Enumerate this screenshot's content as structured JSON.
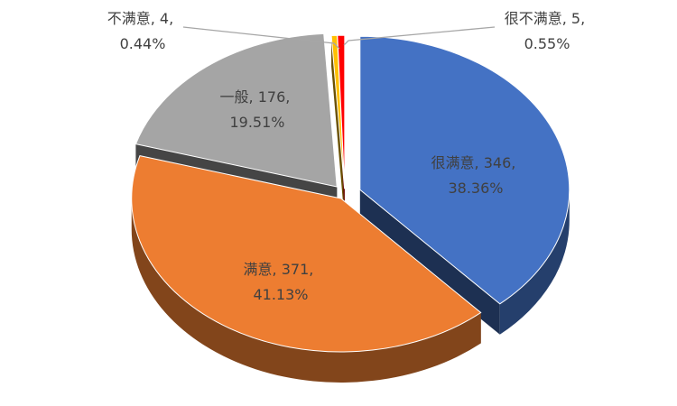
{
  "chart_data": {
    "type": "pie",
    "style": "3d-exploded",
    "categories": [
      "很满意",
      "满意",
      "一般",
      "不满意",
      "很不满意"
    ],
    "values": [
      346,
      371,
      176,
      4,
      5
    ],
    "percentages": [
      "38.36%",
      "41.13%",
      "19.51%",
      "0.44%",
      "0.55%"
    ],
    "colors": [
      "#4472c4",
      "#ed7d31",
      "#a5a5a5",
      "#ffc000",
      "#ff0000"
    ],
    "data_labels": [
      {
        "line1": "很满意, 346,",
        "line2": "38.36%"
      },
      {
        "line1": "满意, 371,",
        "line2": "41.13%"
      },
      {
        "line1": "一般, 176,",
        "line2": "19.51%"
      },
      {
        "line1": "不满意, 4,",
        "line2": "0.44%"
      },
      {
        "line1": "很不满意, 5,",
        "line2": "0.55%"
      }
    ],
    "legend": "none"
  }
}
